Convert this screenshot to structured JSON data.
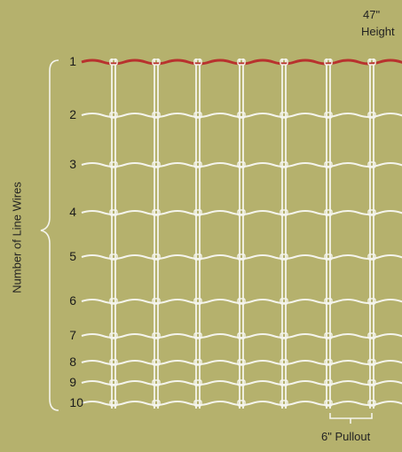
{
  "height_label": {
    "value": "47\"",
    "unit": "Height"
  },
  "side_label": "Number of Line Wires",
  "pullout_label": "6\" Pullout",
  "line_wires": [
    "1",
    "2",
    "3",
    "4",
    "5",
    "6",
    "7",
    "8",
    "9",
    "10"
  ],
  "colors": {
    "background": "#b5b16d",
    "wire": "#f4f4ec",
    "top_wire": "#b8322e",
    "brace": "#f4f4ec"
  }
}
